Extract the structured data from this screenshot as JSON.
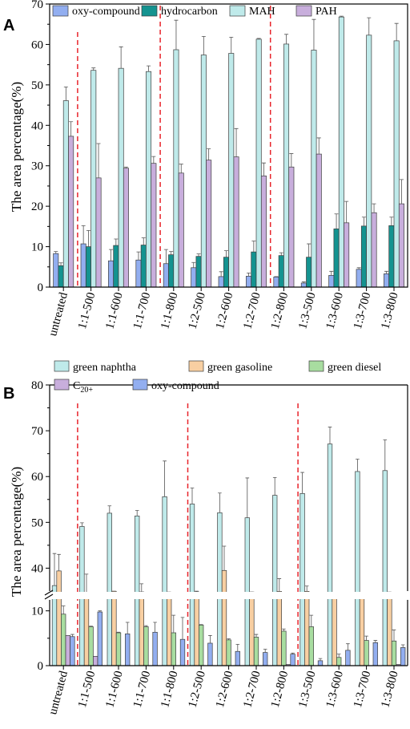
{
  "panels": [
    {
      "label": "A",
      "ylabel": "The area percentage(%)",
      "ylim": [
        0,
        70
      ],
      "yticks": [
        0,
        10,
        20,
        30,
        40,
        50,
        60,
        70
      ],
      "legend": [
        "oxy-compound",
        "hydrocarbon",
        "MAH",
        "PAH"
      ]
    },
    {
      "label": "B",
      "ylabel": "The area percentage(%)",
      "ylim": [
        0,
        80
      ],
      "yticks": [
        0,
        10,
        40,
        50,
        60,
        70,
        80
      ],
      "axis_break": [
        12,
        35
      ],
      "legend": [
        "green naphtha",
        "green gasoline",
        "green diesel",
        "C20+",
        "oxy-compound"
      ]
    }
  ],
  "chart_data": [
    {
      "type": "bar",
      "categories": [
        "untreated",
        "1:1-500",
        "1:1-600",
        "1:1-700",
        "1:1-800",
        "1:2-500",
        "1:2-600",
        "1:2-700",
        "1:2-800",
        "1:3-500",
        "1:3-600",
        "1:3-700",
        "1:3-800"
      ],
      "ylabel": "The area percentage(%)",
      "ylim": [
        0,
        70
      ],
      "grid": false,
      "legend_position": "top",
      "series": [
        {
          "name": "oxy-compound",
          "color": "#92aef0",
          "values": [
            8.3,
            10.7,
            6.5,
            6.7,
            5.8,
            4.8,
            2.6,
            2.7,
            2.5,
            1.0,
            2.9,
            4.4,
            3.3
          ],
          "errors": [
            0.5,
            4.5,
            2.8,
            2.0,
            3.5,
            1.3,
            1.2,
            0.8,
            0.1,
            0.3,
            1.0,
            0.4,
            0.6
          ]
        },
        {
          "name": "hydrocarbon",
          "color": "#149390",
          "values": [
            5.3,
            10.0,
            10.3,
            10.4,
            8.0,
            7.6,
            7.4,
            8.7,
            7.8,
            7.4,
            14.4,
            15.1,
            15.2
          ],
          "errors": [
            0.7,
            4.0,
            1.6,
            1.8,
            0.8,
            0.6,
            1.6,
            2.7,
            0.7,
            3.3,
            3.7,
            2.2,
            2.1
          ]
        },
        {
          "name": "MAH",
          "color": "#bfeaea",
          "values": [
            46.1,
            53.6,
            54.1,
            53.3,
            58.7,
            57.4,
            57.8,
            61.3,
            60.1,
            58.6,
            66.8,
            62.3,
            60.9
          ],
          "errors": [
            3.4,
            0.6,
            5.3,
            1.4,
            7.3,
            4.6,
            4.0,
            0.2,
            2.4,
            7.6,
            0.2,
            4.3,
            4.3
          ]
        },
        {
          "name": "PAH",
          "color": "#c8aedc",
          "values": [
            37.3,
            27.0,
            29.4,
            30.6,
            28.2,
            31.4,
            32.2,
            27.5,
            29.7,
            32.9,
            15.9,
            18.4,
            20.6
          ],
          "errors": [
            3.6,
            8.5,
            0.3,
            1.7,
            2.2,
            2.8,
            7.0,
            3.2,
            3.3,
            4.0,
            5.3,
            2.2,
            6.0
          ]
        }
      ]
    },
    {
      "type": "bar",
      "categories": [
        "untreated",
        "1:1-500",
        "1:1-600",
        "1:1-700",
        "1:1-800",
        "1:2-500",
        "1:2-600",
        "1:2-700",
        "1:2-800",
        "1:3-500",
        "1:3-600",
        "1:3-700",
        "1:3-800"
      ],
      "ylabel": "The area percentage(%)",
      "ylim": [
        0,
        80
      ],
      "axis_break": [
        12,
        35
      ],
      "grid": false,
      "legend_position": "top",
      "series": [
        {
          "name": "green naphtha",
          "color": "#bfeaea",
          "values": [
            36.2,
            49.1,
            52.0,
            51.4,
            55.6,
            54.0,
            52.1,
            51.0,
            55.9,
            56.3,
            67.1,
            61.1,
            61.3
          ],
          "errors": [
            7.0,
            0.8,
            1.6,
            1.2,
            7.8,
            3.5,
            4.3,
            8.7,
            3.9,
            4.6,
            3.7,
            2.7,
            6.7
          ]
        },
        {
          "name": "green gasoline",
          "color": "#f8cfa2",
          "values": [
            39.4,
            29.4,
            34.4,
            32.9,
            31.2,
            32.9,
            39.5,
            32.5,
            34.0,
            34.1,
            27.2,
            28.3,
            29.4
          ],
          "errors": [
            3.6,
            9.3,
            0.2,
            3.7,
            1.5,
            1.9,
            5.3,
            0.2,
            3.7,
            2.0,
            4.7,
            2.9,
            3.2
          ]
        },
        {
          "name": "green diesel",
          "color": "#a8dda0",
          "values": [
            9.4,
            7.1,
            6.0,
            7.1,
            6.0,
            7.4,
            4.7,
            5.2,
            6.3,
            7.1,
            1.5,
            4.6,
            4.5
          ],
          "errors": [
            1.5,
            0.1,
            0.1,
            0.2,
            3.2,
            0.1,
            0.2,
            0.5,
            0.4,
            2.1,
            0.6,
            0.8,
            2.0
          ]
        },
        {
          "name": "C20+",
          "color": "#c8aedc",
          "values": [
            5.5,
            1.7,
            0.0,
            0.0,
            0.0,
            0.0,
            0.0,
            0.0,
            0.2,
            0.0,
            0.0,
            0.0,
            0.2
          ],
          "errors": [
            0.0,
            0.0,
            0.0,
            0.0,
            0.0,
            0.0,
            0.0,
            0.0,
            0.0,
            0.0,
            0.0,
            0.0,
            0.0
          ]
        },
        {
          "name": "oxy-compound",
          "color": "#92aef0",
          "values": [
            5.3,
            9.8,
            5.8,
            6.1,
            4.8,
            4.1,
            2.6,
            2.4,
            2.1,
            0.9,
            2.8,
            4.2,
            3.3
          ],
          "errors": [
            0.4,
            0.2,
            2.1,
            1.8,
            4.0,
            1.4,
            1.3,
            0.6,
            0.2,
            0.4,
            1.2,
            0.4,
            0.5
          ]
        }
      ]
    }
  ]
}
